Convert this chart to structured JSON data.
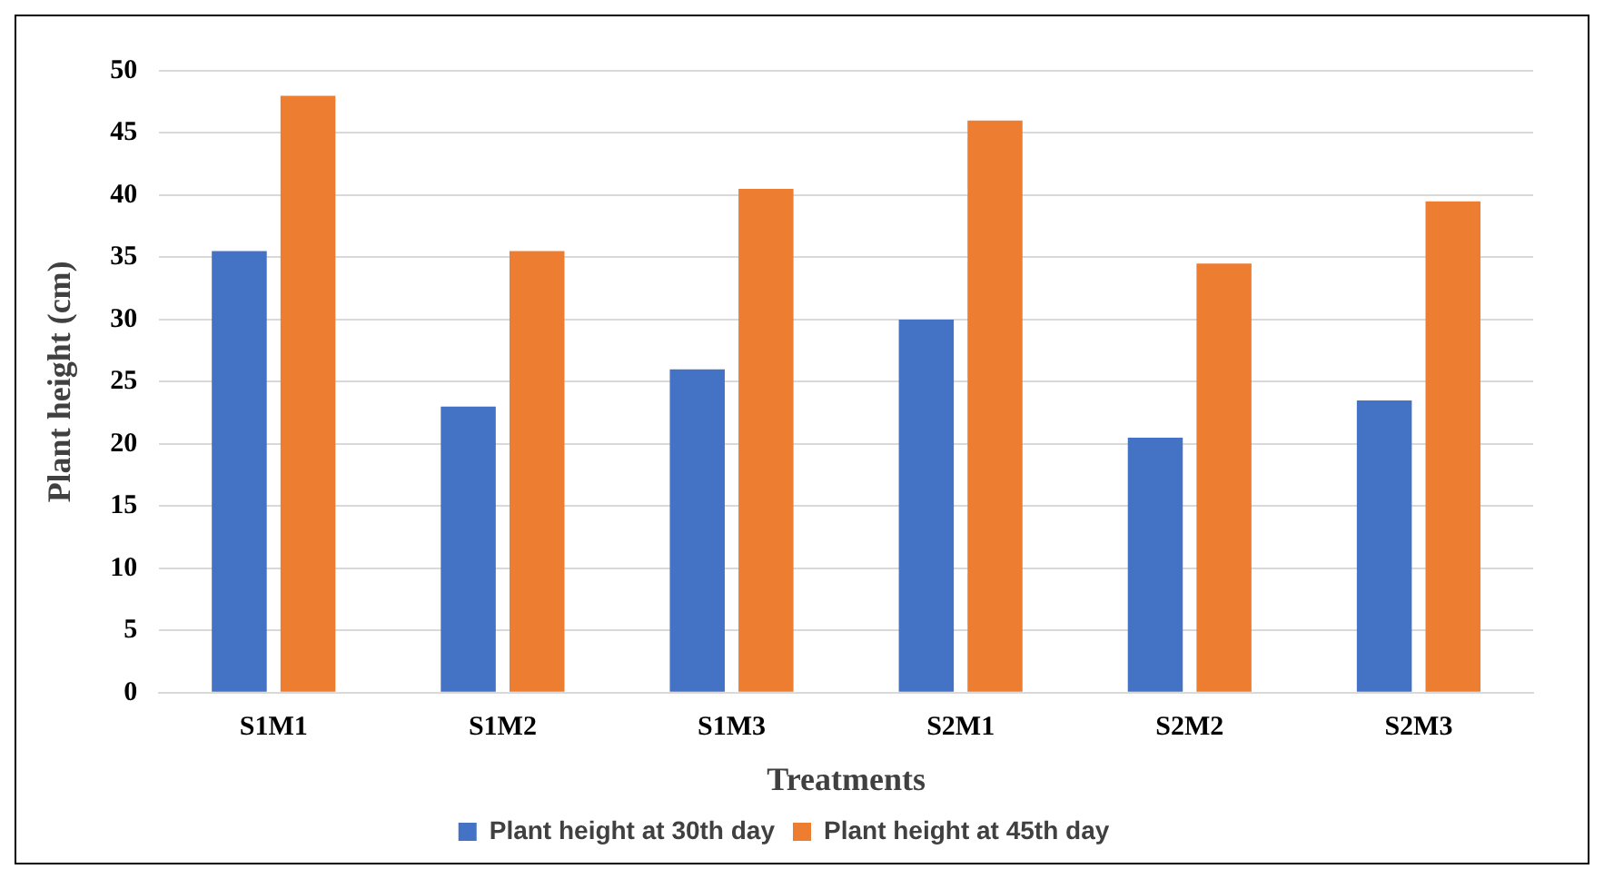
{
  "chart_data": {
    "type": "bar",
    "xlabel": "Treatments",
    "ylabel": "Plant height (cm)",
    "categories": [
      "S1M1",
      "S1M2",
      "S1M3",
      "S2M1",
      "S2M2",
      "S2M3"
    ],
    "series": [
      {
        "name": "Plant height at 30th day",
        "color": "#4472c4",
        "values": [
          35.5,
          23,
          26,
          30,
          20.5,
          23.5
        ]
      },
      {
        "name": "Plant height at 45th day",
        "color": "#ed7d31",
        "values": [
          48,
          35.5,
          40.5,
          46,
          34.5,
          39.5
        ]
      }
    ],
    "ylim": [
      0,
      50
    ],
    "yticks": [
      0,
      5,
      10,
      15,
      20,
      25,
      30,
      35,
      40,
      45,
      50
    ],
    "grid": "y",
    "legend": "bottom"
  }
}
